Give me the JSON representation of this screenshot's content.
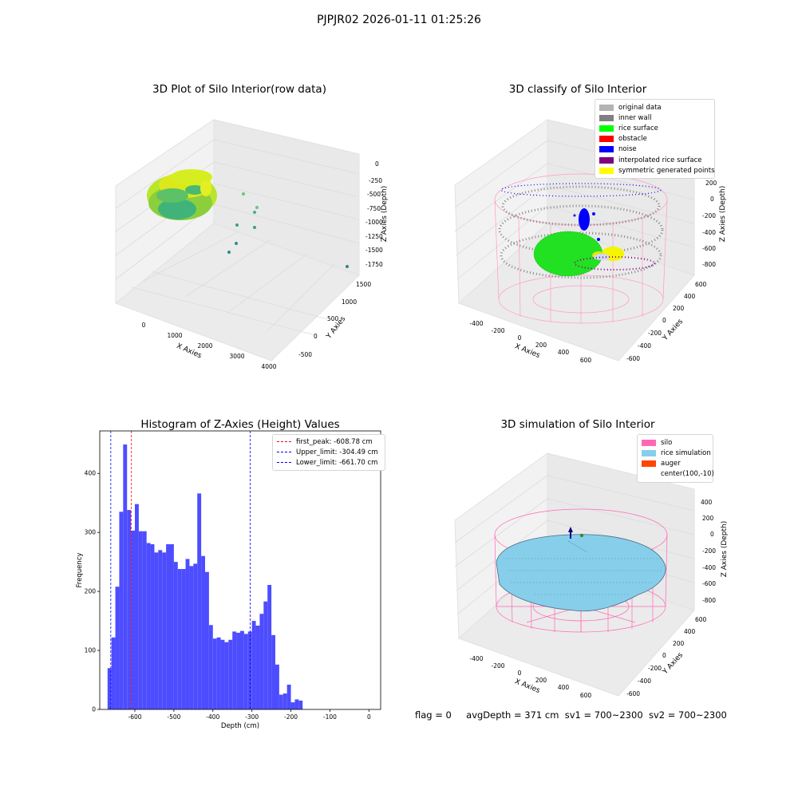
{
  "suptitle": "PJPJR02 2026-01-11 01:25:26",
  "status": {
    "flag": "flag = 0",
    "avg_depth": "avgDepth = 371 cm",
    "sv1": "sv1 = 700~2300",
    "sv2": "sv2 = 700~2300"
  },
  "chart_data": [
    {
      "type": "scatter",
      "title": "3D Plot of Silo Interior(row data)",
      "xlabel": "X Axies",
      "ylabel": "Y Axies",
      "zlabel": "Z Axies (Depth)",
      "x_ticks": [
        "0",
        "1000",
        "2000",
        "3000",
        "4000"
      ],
      "y_ticks": [
        "-500",
        "0",
        "500",
        "1000",
        "1500"
      ],
      "z_ticks": [
        "0",
        "-250",
        "-500",
        "-750",
        "-1000",
        "-1250",
        "-1500",
        "-1750"
      ],
      "grid": true,
      "colormap": [
        "#2ca58d",
        "#7ed957",
        "#e8f20a"
      ]
    },
    {
      "type": "scatter",
      "title": "3D classify of Silo Interior",
      "xlabel": "X Axies",
      "ylabel": "Y Axies",
      "zlabel": "Z Axies (Depth)",
      "x_ticks": [
        "-400",
        "-200",
        "0",
        "200",
        "400",
        "600"
      ],
      "y_ticks": [
        "-600",
        "-400",
        "-200",
        "0",
        "200",
        "400",
        "600"
      ],
      "z_ticks": [
        "200",
        "0",
        "-200",
        "-400",
        "-600",
        "-800"
      ],
      "grid": true,
      "legend_position": "top-right",
      "legend": [
        {
          "label": "original data",
          "color": "#b3b3b3"
        },
        {
          "label": "inner wall",
          "color": "#808080"
        },
        {
          "label": "rice surface",
          "color": "#00ff00"
        },
        {
          "label": "obstacle",
          "color": "#ff0000"
        },
        {
          "label": "noise",
          "color": "#0000ff"
        },
        {
          "label": "interpolated rice surface",
          "color": "#800080"
        },
        {
          "label": "symmetric generated points",
          "color": "#ffff00"
        }
      ]
    },
    {
      "type": "bar",
      "title": "Histogram of Z-Axies (Height) Values",
      "xlabel": "Depth (cm)",
      "ylabel": "Frequency",
      "bar_color": "#4d4dff",
      "bin_start": -670,
      "bin_width": 10,
      "values": [
        70,
        122,
        208,
        335,
        449,
        338,
        303,
        348,
        302,
        302,
        282,
        280,
        266,
        270,
        266,
        280,
        280,
        250,
        238,
        238,
        255,
        243,
        247,
        366,
        260,
        233,
        143,
        120,
        122,
        118,
        114,
        118,
        132,
        130,
        133,
        128,
        132,
        150,
        142,
        162,
        183,
        211,
        126,
        76,
        25,
        27,
        42,
        12,
        17,
        15
      ],
      "xlim": [
        -690,
        30
      ],
      "ylim": [
        0,
        472
      ],
      "x_ticks": [
        -600,
        -500,
        -400,
        -300,
        -200,
        -100,
        0
      ],
      "y_ticks": [
        0,
        100,
        200,
        300,
        400
      ],
      "grid": false,
      "legend_position": "top-right",
      "vlines": [
        {
          "label": "first_peak: -608.78 cm",
          "x": -608.78,
          "color": "#ff0000"
        },
        {
          "label": "Upper_limit: -304.49 cm",
          "x": -304.49,
          "color": "#0000ff"
        },
        {
          "label": "Lower_limit: -661.70 cm",
          "x": -661.7,
          "color": "#0000ff"
        }
      ]
    },
    {
      "type": "area",
      "title": "3D simulation of Silo Interior",
      "xlabel": "X Axies",
      "ylabel": "Y Axies",
      "zlabel": "Z Axies (Depth)",
      "x_ticks": [
        "-400",
        "-200",
        "0",
        "200",
        "400",
        "600"
      ],
      "y_ticks": [
        "-600",
        "-400",
        "-200",
        "0",
        "200",
        "400",
        "600"
      ],
      "z_ticks": [
        "400",
        "200",
        "0",
        "-200",
        "-400",
        "-600",
        "-800"
      ],
      "grid": true,
      "legend_position": "top-right",
      "legend": [
        {
          "label": "silo",
          "color": "#ff69b4"
        },
        {
          "label": "rice simulation",
          "color": "#87ceeb"
        },
        {
          "label": "auger",
          "color": "#ff4500"
        },
        {
          "label": "center(100,-10)",
          "color": ""
        }
      ]
    }
  ]
}
